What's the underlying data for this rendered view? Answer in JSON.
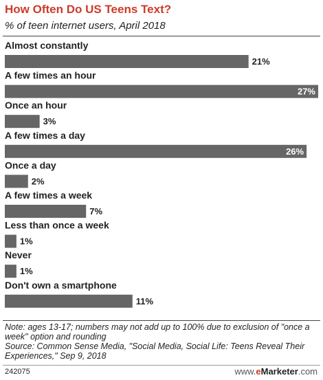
{
  "header": {
    "title": "How Often Do US Teens Text?",
    "subtitle": "% of teen internet users, April 2018"
  },
  "chart_data": {
    "type": "bar",
    "orientation": "horizontal",
    "categories": [
      "Almost constantly",
      "A few times an hour",
      "Once an hour",
      "A few times a day",
      "Once a day",
      "A few times a week",
      "Less than once a week",
      "Never",
      "Don't own a smartphone"
    ],
    "values": [
      21,
      27,
      3,
      26,
      2,
      7,
      1,
      1,
      11
    ],
    "data_labels": [
      "21%",
      "27%",
      "3%",
      "26%",
      "2%",
      "7%",
      "1%",
      "1%",
      "11%"
    ],
    "xlim": [
      0,
      27
    ],
    "grid": false,
    "legend": "none",
    "bar_color": "#666666"
  },
  "notes": {
    "note": "Note: ages 13-17; numbers may not add up to 100% due to exclusion of \"once a week\" option and rounding",
    "source": "Source: Common Sense Media, \"Social Media, Social Life: Teens Reveal Their Experiences,\" Sep 9, 2018"
  },
  "footer": {
    "chart_id": "242075",
    "brand_prefix": "www.",
    "brand_e": "e",
    "brand_name": "Marketer",
    "brand_suffix": ".com"
  }
}
